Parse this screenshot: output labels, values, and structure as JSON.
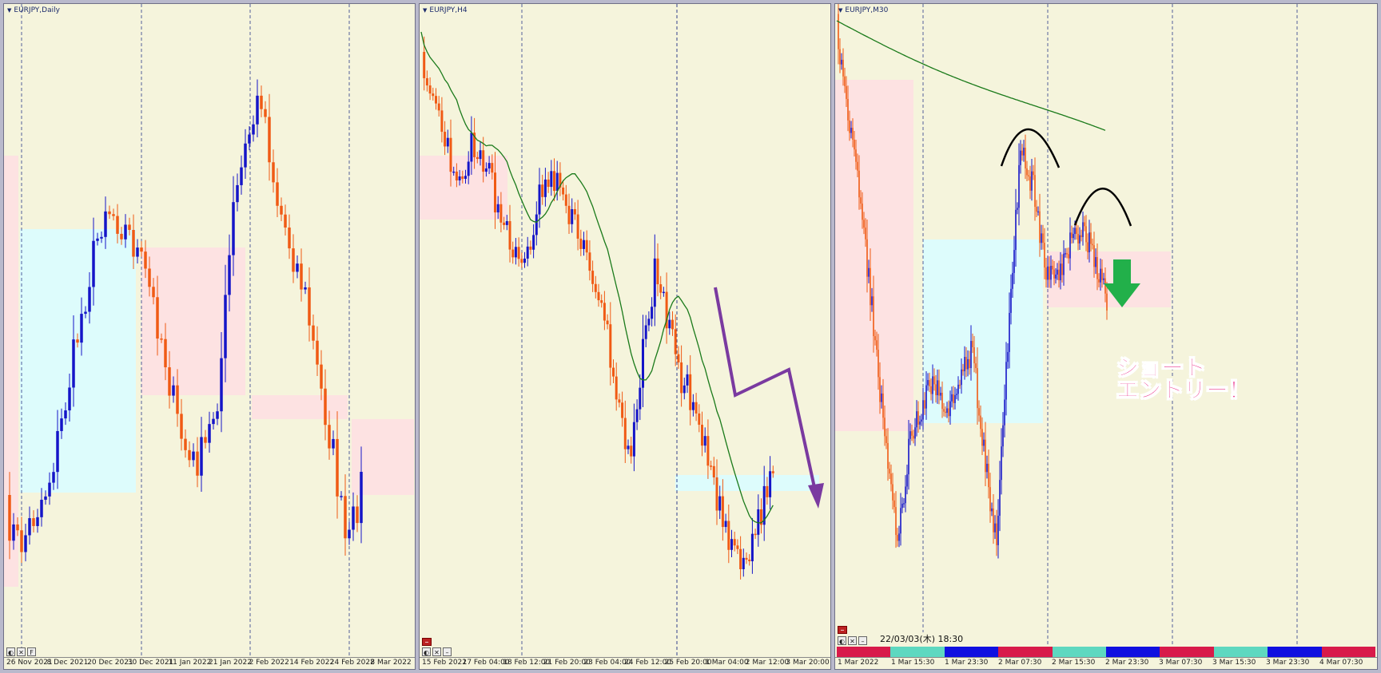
{
  "panels": [
    {
      "title": "EURJPY,Daily",
      "axis_labels": [
        "26 Nov 2021",
        "8 Dec 2021",
        "20 Dec 2021",
        "30 Dec 2021",
        "11 Jan 2022",
        "21 Jan 2022",
        "2 Feb 2022",
        "14 Feb 2022",
        "24 Feb 2022",
        "8 Mar 2022"
      ],
      "toolbar": [
        "◐",
        "✕",
        "F"
      ]
    },
    {
      "title": "EURJPY,H4",
      "axis_labels": [
        "15 Feb 2022",
        "17 Feb 04:00",
        "18 Feb 12:00",
        "21 Feb 20:00",
        "23 Feb 04:00",
        "24 Feb 12:00",
        "25 Feb 20:00",
        "1 Mar 04:00",
        "2 Mar 12:00",
        "3 Mar 20:00"
      ],
      "toolbar": [
        "◐",
        "✕",
        "–"
      ]
    },
    {
      "title": "EURJPY,M30",
      "axis_labels": [
        "1 Mar 2022",
        "1 Mar 15:30",
        "1 Mar 23:30",
        "2 Mar 07:30",
        "2 Mar 15:30",
        "2 Mar 23:30",
        "3 Mar 07:30",
        "3 Mar 15:30",
        "3 Mar 23:30",
        "4 Mar 07:30"
      ],
      "toolbar": [
        "◐",
        "✕",
        "–"
      ],
      "datetime": "22/03/03(木) 18:30"
    }
  ],
  "annotation": {
    "line1": "ショート",
    "line2": "エントリー！"
  },
  "colors": {
    "bull": "#1515c8",
    "bear": "#f05a14",
    "ma": "#1a7a1a",
    "zone_pink": "#fde2e2",
    "zone_cyan": "#ddfcfc",
    "arrow_purple": "#7a3aa0",
    "arrow_green": "#22b04a",
    "bg": "#f5f4dc"
  }
}
